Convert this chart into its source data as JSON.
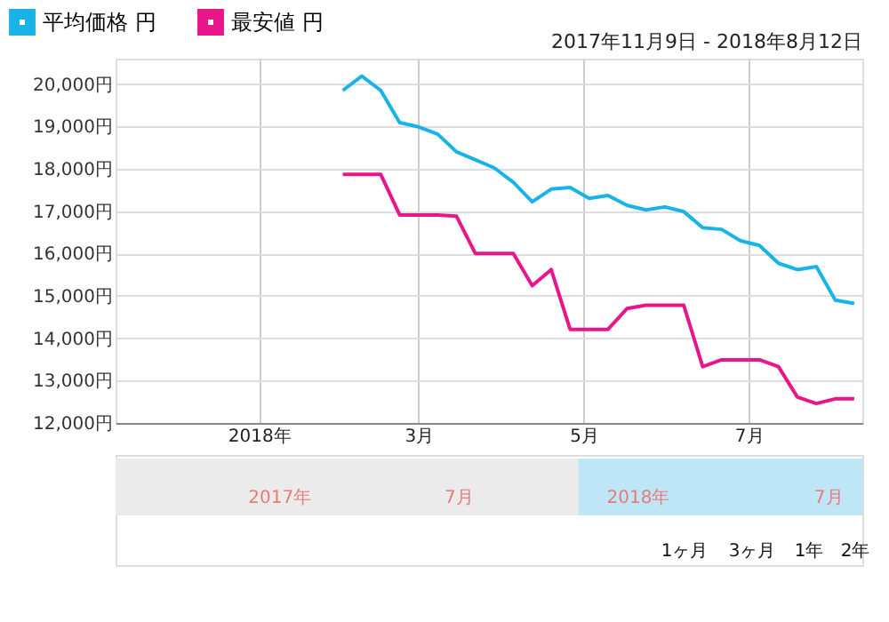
{
  "chart_data": {
    "type": "line",
    "subtitle": "2017年11月9日 - 2018年8月12日",
    "x": [
      "2018-02-01",
      "2018-02-08",
      "2018-02-15",
      "2018-02-22",
      "2018-03-01",
      "2018-03-08",
      "2018-03-15",
      "2018-03-22",
      "2018-03-29",
      "2018-04-05",
      "2018-04-12",
      "2018-04-19",
      "2018-04-26",
      "2018-05-03",
      "2018-05-10",
      "2018-05-17",
      "2018-05-24",
      "2018-05-31",
      "2018-06-07",
      "2018-06-14",
      "2018-06-21",
      "2018-06-28",
      "2018-07-05",
      "2018-07-12",
      "2018-07-19",
      "2018-07-26",
      "2018-08-02",
      "2018-08-09"
    ],
    "series": [
      {
        "name": "平均価格 円",
        "color": "#1ab3e8",
        "values": [
          19850,
          20190,
          19850,
          19090,
          18990,
          18820,
          18400,
          18210,
          18020,
          17680,
          17220,
          17520,
          17560,
          17300,
          17370,
          17140,
          17030,
          17100,
          16990,
          16610,
          16570,
          16300,
          16190,
          15770,
          15620,
          15690,
          14900,
          14820
        ]
      },
      {
        "name": "最安値 円",
        "color": "#e8168a",
        "values": [
          17870,
          17870,
          17870,
          16910,
          16910,
          16910,
          16880,
          16000,
          16000,
          16000,
          15240,
          15620,
          14210,
          14210,
          14210,
          14700,
          14780,
          14780,
          14780,
          13330,
          13490,
          13490,
          13490,
          13330,
          12610,
          12460,
          12570,
          12570
        ]
      }
    ],
    "xlim": [
      "2017-11-09",
      "2018-08-12"
    ],
    "xticks": [
      {
        "value": "2018-01-01",
        "label": "2018年"
      },
      {
        "value": "2018-03-01",
        "label": "3月"
      },
      {
        "value": "2018-05-01",
        "label": "5月"
      },
      {
        "value": "2018-07-01",
        "label": "7月"
      }
    ],
    "ylim": [
      12000,
      20600
    ],
    "yticks": [
      {
        "value": 12000,
        "label": "12,000円"
      },
      {
        "value": 13000,
        "label": "13,000円"
      },
      {
        "value": 14000,
        "label": "14,000円"
      },
      {
        "value": 15000,
        "label": "15,000円"
      },
      {
        "value": 16000,
        "label": "16,000円"
      },
      {
        "value": 17000,
        "label": "17,000円"
      },
      {
        "value": 18000,
        "label": "18,000円"
      },
      {
        "value": 19000,
        "label": "19,000円"
      },
      {
        "value": 20000,
        "label": "20,000円"
      }
    ],
    "grid": true,
    "legend": "top left",
    "marker": "none",
    "line_style": "solid",
    "annotations": [
      "2017年",
      "7月",
      "2018年",
      "7月",
      "1ヶ月",
      "3ヶ月",
      "1年",
      "2年"
    ]
  }
}
